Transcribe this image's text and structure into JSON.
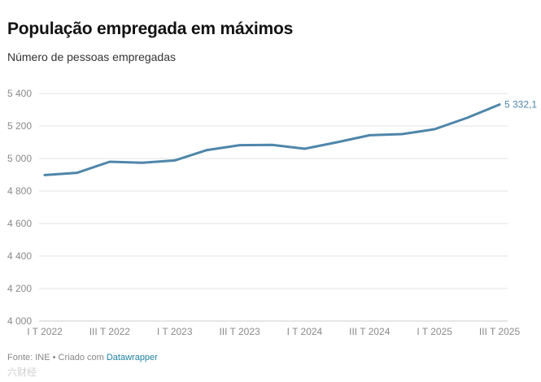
{
  "header": {
    "title": "População empregada em máximos",
    "subtitle": "Número de pessoas empregadas"
  },
  "footer": {
    "source_text": "Fonte: INE • Criado com",
    "tool_link": "Datawrapper",
    "watermark": "六财经"
  },
  "colors": {
    "line": "#4e86aa",
    "grid": "#e3e3e3",
    "axis_text": "#8a8a8a"
  },
  "chart_data": {
    "type": "line",
    "title": "População empregada em máximos",
    "subtitle": "Número de pessoas empregadas",
    "xlabel": "",
    "ylabel": "",
    "ylim": [
      4000,
      5400
    ],
    "yticks": [
      4000,
      4200,
      4400,
      4600,
      4800,
      5000,
      5200,
      5400
    ],
    "ytick_labels": [
      "4 000",
      "4 200",
      "4 400",
      "4 600",
      "4 800",
      "5 000",
      "5 200",
      "5 400"
    ],
    "grid": true,
    "x": [
      "I T 2022",
      "II T 2022",
      "III T 2022",
      "IV T 2022",
      "I T 2023",
      "II T 2023",
      "III T 2023",
      "IV T 2023",
      "I T 2024",
      "II T 2024",
      "III T 2024",
      "IV T 2024",
      "I T 2025",
      "II T 2025",
      "III T 2025"
    ],
    "xtick_labels": [
      "I T 2022",
      "III T 2022",
      "I T 2023",
      "III T 2023",
      "I T 2024",
      "III T 2024",
      "I T 2025",
      "III T 2025"
    ],
    "series": [
      {
        "values": [
          4898,
          4912,
          4980,
          4974,
          4988,
          5052,
          5082,
          5084,
          5060,
          5100,
          5143,
          5150,
          5180,
          5250,
          5332.1
        ],
        "end_label": "5 332,1"
      }
    ]
  }
}
